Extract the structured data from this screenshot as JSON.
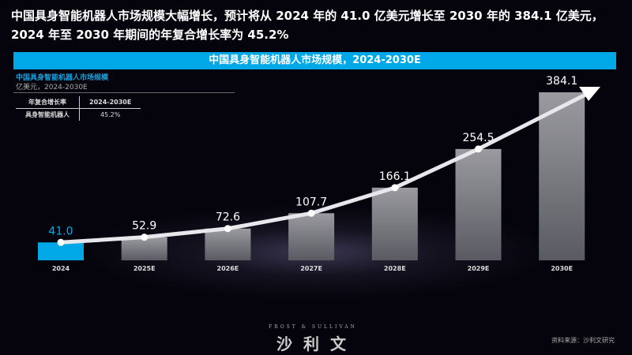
{
  "headline": "中国具身智能机器人市场规模大幅增长，预计将从 2024 年的 41.0 亿美元增长至 2030 年的 384.1 亿美元，2024 年至 2030 年期间的年复合增长率为 45.2%",
  "chart_data": {
    "type": "bar",
    "title": "中国具身智能机器人市场规模，2024-2030E",
    "subtitle": "中国具身智能机器人市场规模",
    "unit": "亿美元，2024-2030E",
    "categories": [
      "2024",
      "2025E",
      "2026E",
      "2027E",
      "2028E",
      "2029E",
      "2030E"
    ],
    "values": [
      41.0,
      52.9,
      72.6,
      107.7,
      166.1,
      254.5,
      384.1
    ],
    "labels": [
      "41.0",
      "52.9",
      "72.6",
      "107.7",
      "166.1",
      "254.5",
      "384.1"
    ],
    "highlight_color": "#00a8e8",
    "bar_color": "#8a8a90",
    "trend_line": true
  },
  "cagr_table": {
    "header": [
      "年复合增长率",
      "2024-2030E"
    ],
    "row": [
      "具身智能机器人",
      "45.2%"
    ]
  },
  "footer": {
    "logo_en": "FROST & SULLIVAN",
    "logo_cn": "沙利文",
    "source": "资料来源：沙利文研究"
  }
}
